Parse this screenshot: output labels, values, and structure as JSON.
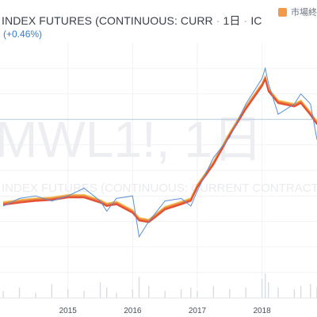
{
  "header": {
    "title": "INDEX FUTURES (CONTINUOUS: CURR",
    "interval": "1日",
    "exchange": "IC",
    "change_text": "+0.46%",
    "market_status": "市場終"
  },
  "watermark": {
    "symbol": "MWL1!, 1日",
    "name": "INDEX FUTURES (CONTINUOUS: CURRENT CONTRACT IN F"
  },
  "colors": {
    "price_line": "#5b8fd9",
    "ribbon_warm": "#e2472f",
    "ribbon_yellow": "#f2c14e",
    "ref_line": "#b9cbe6",
    "status": "#f29a4a"
  },
  "chart_data": {
    "type": "line",
    "title": "INDEX FUTURES (CONTINUOUS: CURR",
    "x_ticks": [
      "2015",
      "2016",
      "2017",
      "2018"
    ],
    "x": [
      2014.0,
      2014.25,
      2014.5,
      2014.75,
      2015.0,
      2015.25,
      2015.5,
      2015.6,
      2015.75,
      2016.0,
      2016.1,
      2016.25,
      2016.5,
      2016.75,
      2016.9,
      2017.0,
      2017.25,
      2017.5,
      2017.75,
      2018.0,
      2018.05,
      2018.1,
      2018.25,
      2018.5,
      2018.6,
      2018.75,
      2018.85
    ],
    "series": [
      {
        "values": [
          64,
          61,
          60,
          62,
          60,
          57,
          62,
          66,
          61,
          60,
          76,
          70,
          62,
          61,
          64,
          58,
          45,
          37,
          24,
          14,
          10,
          16,
          28,
          24,
          20,
          24,
          38
        ]
      }
    ],
    "ylim": [
      0,
      100
    ],
    "y_grid": [
      10,
      20,
      30,
      40,
      50,
      60,
      70,
      80,
      90
    ],
    "reference_line": 30,
    "volume": [
      4,
      6,
      3,
      8,
      5,
      4,
      9,
      6,
      3,
      5,
      12,
      7,
      4,
      5,
      6,
      4,
      7,
      5,
      6,
      11,
      14,
      9,
      6,
      5,
      7,
      8,
      6
    ],
    "grid": true
  }
}
